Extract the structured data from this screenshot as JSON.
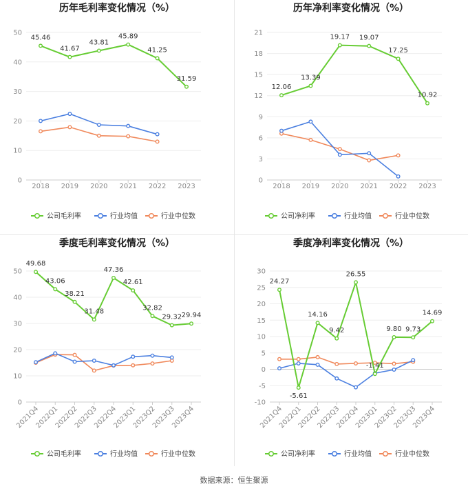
{
  "source_text": "数据来源：恒生聚源",
  "legend": [
    "公司毛利率",
    "行业均值",
    "行业中位数"
  ],
  "chart_data": [
    {
      "type": "line",
      "title": "历年毛利率变化情况（%）",
      "categories": [
        "2018",
        "2019",
        "2020",
        "2021",
        "2022",
        "2023"
      ],
      "ylim": [
        0,
        50
      ],
      "yticks": [
        0,
        10,
        20,
        30,
        40,
        50
      ],
      "legend": [
        "公司毛利率",
        "行业均值",
        "行业中位数"
      ],
      "legend_position": "bottom",
      "rotate_x": false,
      "series": [
        {
          "name": "公司毛利率",
          "color": "#66cc33",
          "values": [
            45.46,
            41.67,
            43.81,
            45.89,
            41.25,
            31.59
          ],
          "labels": [
            "45.46",
            "41.67",
            "43.81",
            "45.89",
            "41.25",
            "31.59"
          ]
        },
        {
          "name": "行业均值",
          "color": "#4a7fe0",
          "values": [
            20.0,
            22.4,
            18.7,
            18.3,
            15.5,
            null
          ]
        },
        {
          "name": "行业中位数",
          "color": "#f0885a",
          "values": [
            16.5,
            17.9,
            15.0,
            14.8,
            13.0,
            null
          ]
        }
      ]
    },
    {
      "type": "line",
      "title": "历年净利率变化情况（%）",
      "categories": [
        "2018",
        "2019",
        "2020",
        "2021",
        "2022",
        "2023"
      ],
      "ylim": [
        0,
        21
      ],
      "yticks": [
        0,
        3,
        6,
        9,
        12,
        15,
        18,
        21
      ],
      "legend": [
        "公司净利率",
        "行业均值",
        "行业中位数"
      ],
      "legend_position": "bottom",
      "rotate_x": false,
      "series": [
        {
          "name": "公司净利率",
          "color": "#66cc33",
          "values": [
            12.06,
            13.39,
            19.17,
            19.07,
            17.25,
            10.92
          ],
          "labels": [
            "12.06",
            "13.39",
            "19.17",
            "19.07",
            "17.25",
            "10.92"
          ]
        },
        {
          "name": "行业均值",
          "color": "#4a7fe0",
          "values": [
            7.0,
            8.3,
            3.6,
            3.8,
            0.5,
            null
          ]
        },
        {
          "name": "行业中位数",
          "color": "#f0885a",
          "values": [
            6.6,
            5.7,
            4.4,
            2.8,
            3.5,
            null
          ]
        }
      ]
    },
    {
      "type": "line",
      "title": "季度毛利率变化情况（%）",
      "categories": [
        "2021Q4",
        "2022Q1",
        "2022Q2",
        "2022Q3",
        "2022Q4",
        "2023Q1",
        "2023Q2",
        "2023Q3",
        "2023Q4"
      ],
      "ylim": [
        0,
        50
      ],
      "yticks": [
        0,
        10,
        20,
        30,
        40,
        50
      ],
      "legend": [
        "公司毛利率",
        "行业均值",
        "行业中位数"
      ],
      "legend_position": "bottom",
      "rotate_x": true,
      "series": [
        {
          "name": "公司毛利率",
          "color": "#66cc33",
          "values": [
            49.68,
            43.06,
            38.21,
            31.48,
            47.36,
            42.61,
            32.82,
            29.32,
            29.94
          ],
          "labels": [
            "49.68",
            "43.06",
            "38.21",
            "31.48",
            "47.36",
            "42.61",
            "32.82",
            "29.32",
            "29.94"
          ]
        },
        {
          "name": "行业均值",
          "color": "#4a7fe0",
          "values": [
            15.2,
            18.6,
            15.4,
            15.8,
            14.0,
            17.3,
            17.7,
            17.0,
            null
          ]
        },
        {
          "name": "行业中位数",
          "color": "#f0885a",
          "values": [
            15.0,
            18.1,
            18.0,
            12.0,
            13.9,
            14.0,
            14.7,
            15.8,
            null
          ]
        }
      ]
    },
    {
      "type": "line",
      "title": "季度净利率变化情况（%）",
      "categories": [
        "2021Q4",
        "2022Q1",
        "2022Q2",
        "2022Q3",
        "2022Q4",
        "2023Q1",
        "2023Q2",
        "2023Q3",
        "2023Q4"
      ],
      "ylim": [
        -10,
        30
      ],
      "yticks": [
        -10,
        -5,
        0,
        5,
        10,
        15,
        20,
        25,
        30
      ],
      "legend": [
        "公司净利率",
        "行业均值",
        "行业中位数"
      ],
      "legend_position": "bottom",
      "rotate_x": true,
      "series": [
        {
          "name": "公司净利率",
          "color": "#66cc33",
          "values": [
            24.27,
            -5.61,
            14.16,
            9.42,
            26.55,
            -1.41,
            9.8,
            9.73,
            14.69
          ],
          "labels": [
            "24.27",
            "-5.61",
            "14.16",
            "9.42",
            "26.55",
            "-1.41",
            "9.80",
            "9.73",
            "14.69"
          ]
        },
        {
          "name": "行业均值",
          "color": "#4a7fe0",
          "values": [
            0.3,
            1.8,
            1.4,
            -2.8,
            -5.5,
            -1.2,
            -0.1,
            2.8,
            null
          ]
        },
        {
          "name": "行业中位数",
          "color": "#f0885a",
          "values": [
            3.1,
            3.1,
            3.7,
            1.6,
            1.8,
            2.0,
            1.7,
            2.3,
            null
          ]
        }
      ]
    }
  ]
}
